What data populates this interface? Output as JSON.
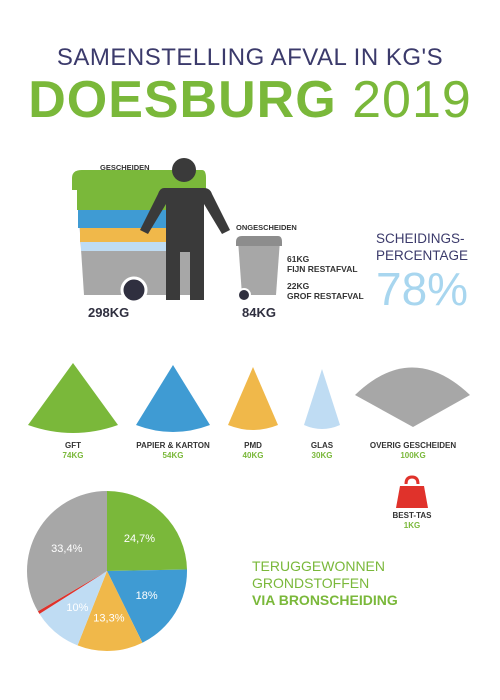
{
  "header": {
    "title_line1": "SAMENSTELLING AFVAL IN KG'S",
    "title_bold": "DOESBURG",
    "title_year": "2019"
  },
  "bins": {
    "separated_label": "GESCHEIDEN",
    "separated_kg": "298KG",
    "unseparated_label": "ONGESCHEIDEN",
    "unseparated_kg": "84KG",
    "fine_kg": "61KG",
    "fine_label": "FIJN RESTAFVAL",
    "coarse_kg": "22KG",
    "coarse_label": "GROF RESTAFVAL"
  },
  "separation": {
    "label_line1": "SCHEIDINGS-",
    "label_line2": "PERCENTAGE",
    "value": "78%"
  },
  "categories": [
    {
      "label": "GFT",
      "kg": "74KG",
      "color": "#7ab83a"
    },
    {
      "label": "PAPIER & KARTON",
      "kg": "54KG",
      "color": "#3f9bd3"
    },
    {
      "label": "PMD",
      "kg": "40KG",
      "color": "#f0b84a"
    },
    {
      "label": "GLAS",
      "kg": "30KG",
      "color": "#bfdcf3"
    },
    {
      "label": "OVERIG GESCHEIDEN",
      "kg": "100KG",
      "color": "#a7a7a7"
    }
  ],
  "best_tas": {
    "label": "BEST-TAS",
    "kg": "1KG",
    "color": "#e0322b",
    "icon": "bag-icon"
  },
  "recovered": {
    "line1": "TERUGGEWONNEN",
    "line2": "GRONDSTOFFEN",
    "line3": "VIA BRONSCHEIDING"
  },
  "chart_data": {
    "type": "pie",
    "slices": [
      {
        "label": "24,7%",
        "value": 24.7,
        "color": "#7ab83a"
      },
      {
        "label": "18%",
        "value": 18.0,
        "color": "#3f9bd3"
      },
      {
        "label": "13,3%",
        "value": 13.3,
        "color": "#f0b84a"
      },
      {
        "label": "10%",
        "value": 10.0,
        "color": "#bfdcf3"
      },
      {
        "label": "",
        "value": 0.6,
        "color": "#e0322b"
      },
      {
        "label": "33,4%",
        "value": 33.4,
        "color": "#a7a7a7"
      }
    ]
  }
}
